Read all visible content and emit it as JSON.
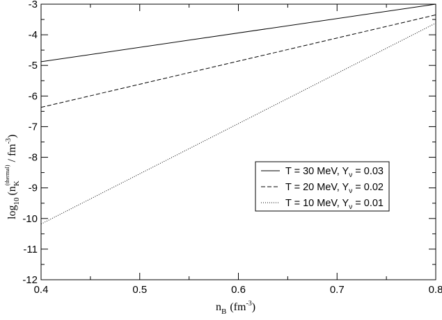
{
  "chart_data": {
    "type": "line",
    "x": [
      0.4,
      0.8
    ],
    "xlim": [
      0.4,
      0.8
    ],
    "ylim": [
      -12,
      -3
    ],
    "xticks": [
      0.4,
      0.5,
      0.6,
      0.7,
      0.8
    ],
    "xtick_labels": [
      "0.4",
      "0.5",
      "0.6",
      "0.7",
      "0.8"
    ],
    "yticks": [
      -12,
      -11,
      -10,
      -9,
      -8,
      -7,
      -6,
      -5,
      -4,
      -3
    ],
    "ytick_labels": [
      "-12",
      "-11",
      "-10",
      "-9",
      "-8",
      "-7",
      "-6",
      "-5",
      "-4",
      "-3"
    ],
    "xlabel": {
      "main": "n",
      "sub": "B",
      "unit_open": "(fm",
      "sup": "-3",
      "unit_close": ")"
    },
    "ylabel": {
      "pre": "log",
      "sub10": "10",
      "open": "(n",
      "subK": "K",
      "supThermal": "(thermal)",
      "mid": "/ fm",
      "sup": "-3",
      "close": ")"
    },
    "series": [
      {
        "name": {
          "pre": "T = 30 MeV, Y",
          "sub": "ν",
          "post": " = 0.03"
        },
        "style": "solid",
        "y": [
          -4.88,
          -2.97
        ]
      },
      {
        "name": {
          "pre": "T = 20 MeV, Y",
          "sub": "ν",
          "post": " = 0.02"
        },
        "style": "dashed",
        "y": [
          -6.37,
          -3.35
        ]
      },
      {
        "name": {
          "pre": "T = 10 MeV, Y",
          "sub": "ν",
          "post": " = 0.01"
        },
        "style": "dotted",
        "y": [
          -10.18,
          -3.62
        ]
      }
    ],
    "grid": false,
    "legend_position": "center-right",
    "line_color": "#000000"
  }
}
